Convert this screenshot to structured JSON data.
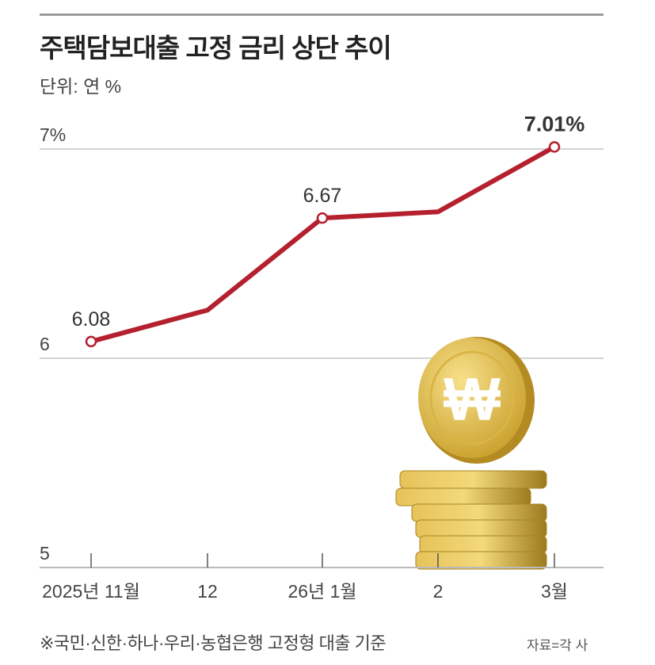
{
  "chart_data": {
    "type": "line",
    "title": "주택담보대출 고정 금리 상단 추이",
    "unit": "단위: 연 %",
    "categories": [
      "2025년 11월",
      "12",
      "26년 1월",
      "2",
      "3월"
    ],
    "values": [
      6.08,
      6.23,
      6.67,
      6.7,
      7.01
    ],
    "data_labels": [
      "6.08",
      "",
      "6.67",
      "",
      "7.01%"
    ],
    "ylim": [
      5,
      7
    ],
    "yticks": [
      {
        "value": 7,
        "label": "7%"
      },
      {
        "value": 6,
        "label": "6"
      },
      {
        "value": 5,
        "label": "5"
      }
    ],
    "grid": true,
    "line_color": "#b5202e",
    "footnote": "※국민·신한·하나·우리·농협은행 고정형 대출 기준",
    "source": "자료=각 사"
  }
}
